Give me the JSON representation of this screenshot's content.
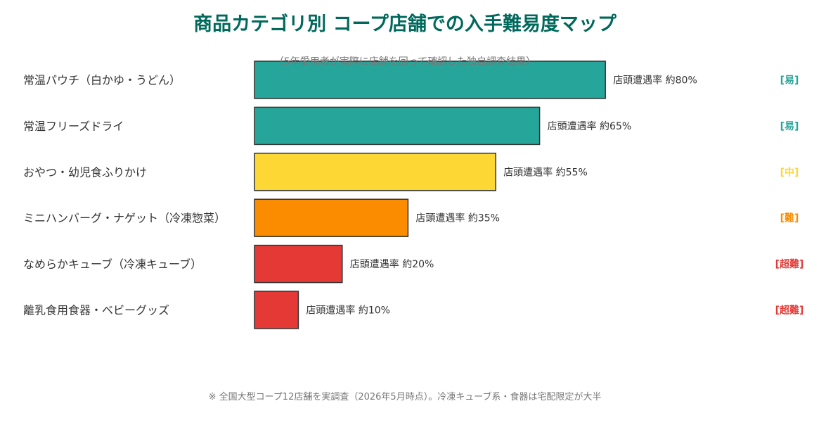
{
  "colors": {
    "title": "#00695c",
    "easy": "#26a69a",
    "medium": "#fdd835",
    "hard": "#fb8c00",
    "very_hard": "#e53935",
    "text": "#333333",
    "muted": "#777777"
  },
  "chart_data": {
    "type": "bar",
    "orientation": "horizontal",
    "title": "商品カテゴリ別 コープ店舗での入手難易度マップ",
    "subtitle": "（5年愛用者が実際に店舗を回って確認した独自調査結果）",
    "categories": [
      "常温パウチ（白かゆ・うどん）",
      "常温フリーズドライ",
      "おやつ・幼児食ふりかけ",
      "ミニハンバーグ・ナゲット（冷凍惣菜）",
      "なめらかキューブ（冷凍キューブ）",
      "離乳食用食器・ベビーグッズ"
    ],
    "values": [
      80,
      65,
      55,
      35,
      20,
      10
    ],
    "value_labels": [
      "店頭遭遇率 約80%",
      "店頭遭遇率 約65%",
      "店頭遭遇率 約55%",
      "店頭遭遇率 約35%",
      "店頭遭遇率 約20%",
      "店頭遭遇率 約10%"
    ],
    "difficulty_labels": [
      "[易]",
      "[易]",
      "[中]",
      "[難]",
      "[超難]",
      "[超難]"
    ],
    "difficulty_levels": [
      "easy",
      "easy",
      "medium",
      "hard",
      "very_hard",
      "very_hard"
    ],
    "xlim": [
      0,
      100
    ],
    "grid": false,
    "footnote": "※ 全国大型コープ12店舗を実調査（2026年5月時点）。冷凍キューブ系・食器は宅配限定が大半"
  }
}
